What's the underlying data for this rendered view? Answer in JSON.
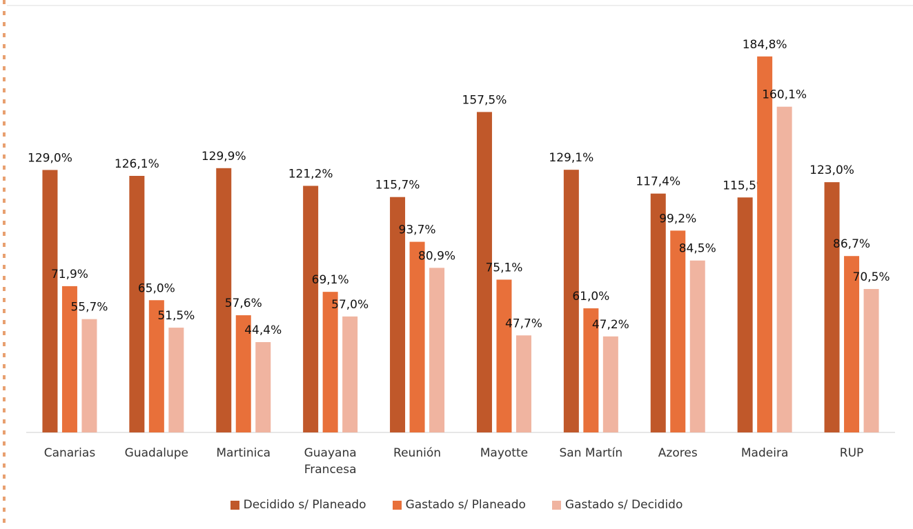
{
  "chart_data": {
    "type": "bar",
    "categories": [
      "Canarias",
      "Guadalupe",
      "Martinica",
      "Guayana Francesa",
      "Reunión",
      "Mayotte",
      "San Martín",
      "Azores",
      "Madeira",
      "RUP"
    ],
    "series": [
      {
        "name": "Decidido s/ Planeado",
        "color": "#c0582a",
        "values": [
          129.0,
          126.1,
          129.9,
          121.2,
          115.7,
          157.5,
          129.1,
          117.4,
          115.5,
          123.0
        ],
        "value_labels": [
          "129,0%",
          "126,1%",
          "129,9%",
          "121,2%",
          "115,7%",
          "157,5%",
          "129,1%",
          "117,4%",
          "115,5%",
          "123,0%"
        ]
      },
      {
        "name": "Gastado s/ Planeado",
        "color": "#e8703a",
        "values": [
          71.9,
          65.0,
          57.6,
          69.1,
          93.7,
          75.1,
          61.0,
          99.2,
          184.8,
          86.7
        ],
        "value_labels": [
          "71,9%",
          "65,0%",
          "57,6%",
          "69,1%",
          "93,7%",
          "75,1%",
          "61,0%",
          "99,2%",
          "184,8%",
          "86,7%"
        ]
      },
      {
        "name": "Gastado s/ Decidido",
        "color": "#f0b4a0",
        "values": [
          55.7,
          51.5,
          44.4,
          57.0,
          80.9,
          47.7,
          47.2,
          84.5,
          160.1,
          70.5
        ],
        "value_labels": [
          "55,7%",
          "51,5%",
          "44,4%",
          "57,0%",
          "80,9%",
          "47,7%",
          "47,2%",
          "84,5%",
          "160,1%",
          "70,5%"
        ]
      }
    ],
    "ylim": [
      0,
      200
    ],
    "legend": "bottom"
  }
}
